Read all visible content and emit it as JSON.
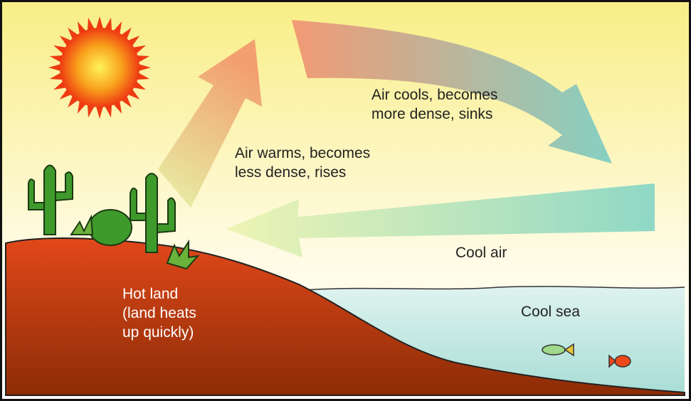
{
  "labels": {
    "rising_air": [
      "Air warms, becomes",
      "less dense, rises"
    ],
    "sinking_air": [
      "Air cools, becomes",
      "more dense, sinks"
    ],
    "cool_air": "Cool air",
    "hot_land": [
      "Hot land",
      "(land heats",
      "up quickly)"
    ],
    "cool_sea": "Cool sea"
  }
}
